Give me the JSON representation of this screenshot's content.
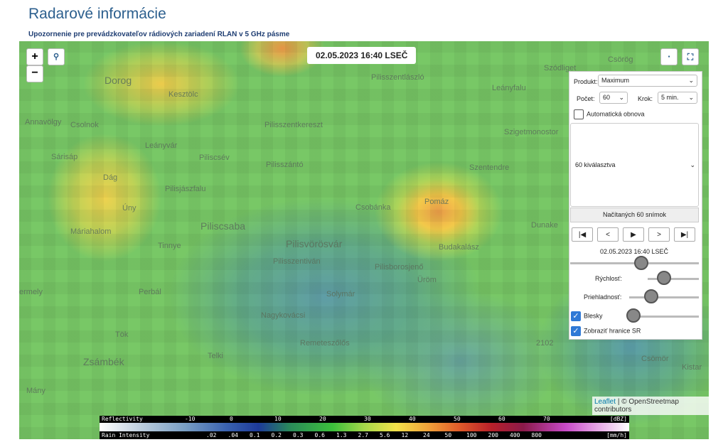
{
  "header": {
    "title": "Radarové informácie",
    "notice": "Upozornenie pre prevádzkovateľov rádiových zariadení RLAN v 5 GHz pásme"
  },
  "map": {
    "zoom_in": "+",
    "zoom_out": "−",
    "timestamp": "02.05.2023 16:40 LSEČ",
    "places": [
      "Dorog",
      "Kesztölc",
      "Pilisszentlászló",
      "Leányfalu",
      "Annavölgy",
      "Csolnok",
      "Pilisszentkereszt",
      "Szigetmonostor",
      "Leányvár",
      "Sárisáp",
      "Piliscsév",
      "Pilisszántó",
      "Szentendre",
      "Dág",
      "Pilisjászfalu",
      "Úny",
      "Csobánka",
      "Pomáz",
      "Máriahalom",
      "Piliscsaba",
      "Dunake",
      "Tinnye",
      "Pilisvörösvár",
      "Budakalász",
      "Pilisszentiván",
      "Pilisborosjenő",
      "Üröm",
      "ermely",
      "Perbál",
      "Solymár",
      "Nagykovácsi",
      "Tök",
      "Remeteszőlős",
      "Zsámbék",
      "Telki",
      "Csömör",
      "Kistar",
      "Mány",
      "Csörög",
      "Szódliget",
      "2102"
    ],
    "attribution_link": "Leaflet",
    "attribution_text": "| © OpenStreetmap contributors"
  },
  "controls": {
    "product_label": "Produkt:",
    "product_value": "Maximum",
    "count_label": "Počet:",
    "count_value": "60",
    "step_label": "Krok:",
    "step_value": "5 min.",
    "auto_refresh": {
      "label": "Automatická obnova",
      "checked": false
    },
    "selection": "60 kiválasztva",
    "loaded": "Načítaných 60 snímok",
    "time": "02.05.2023 16:40 LSEČ",
    "speed": "Rýchlosť:",
    "opacity": "Priehladnosť:",
    "lightning": {
      "label": "Blesky",
      "checked": true
    },
    "borders": {
      "label": "Zobraziť hranice SR",
      "checked": true
    }
  },
  "legend": {
    "reflectivity_label": "Reflectivity",
    "reflectivity_unit": "[dBZ]",
    "reflectivity_ticks": [
      "-10",
      "0",
      "10",
      "20",
      "30",
      "40",
      "50",
      "60",
      "70"
    ],
    "rain_label": "Rain Intensity",
    "rain_unit": "[mm/h]",
    "rain_ticks": [
      ".02",
      ".04",
      "0.1",
      "0.2",
      "0.3",
      "0.6",
      "1.3",
      "2.7",
      "5.6",
      "12",
      "24",
      "50",
      "100",
      "200",
      "400",
      "800"
    ]
  }
}
